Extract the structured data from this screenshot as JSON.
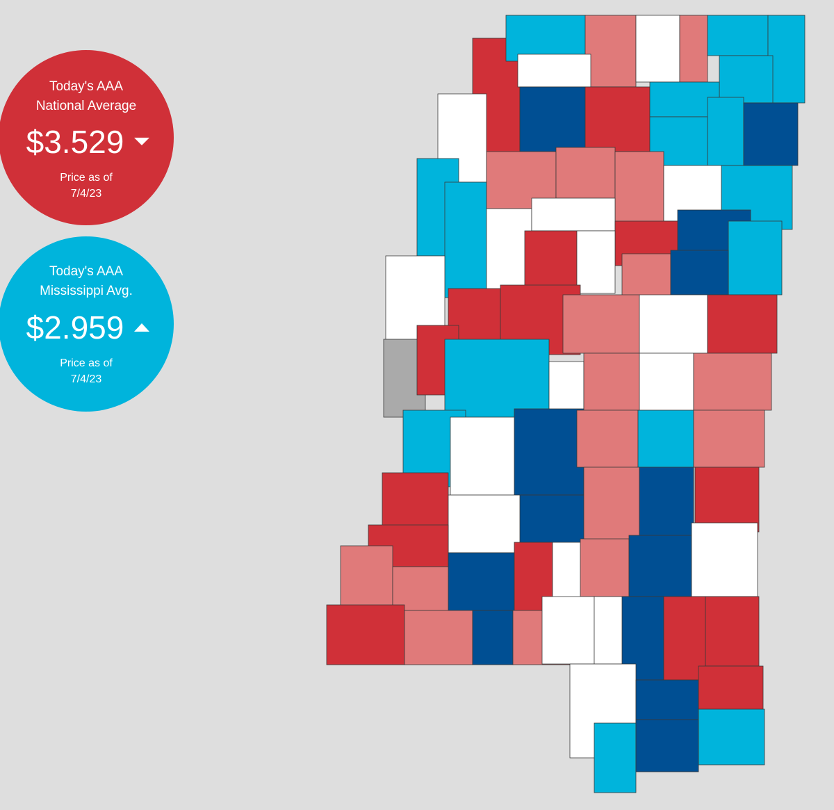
{
  "national": {
    "heading": [
      "Today's AAA",
      "National Average"
    ],
    "price": "$3.529",
    "as_of": "Price as of",
    "date": "7/4/23"
  },
  "state": {
    "heading": [
      "Today's AAA",
      "Mississippi Avg."
    ],
    "price": "$2.959",
    "as_of": "Price as of",
    "date": "7/4/23"
  }
}
